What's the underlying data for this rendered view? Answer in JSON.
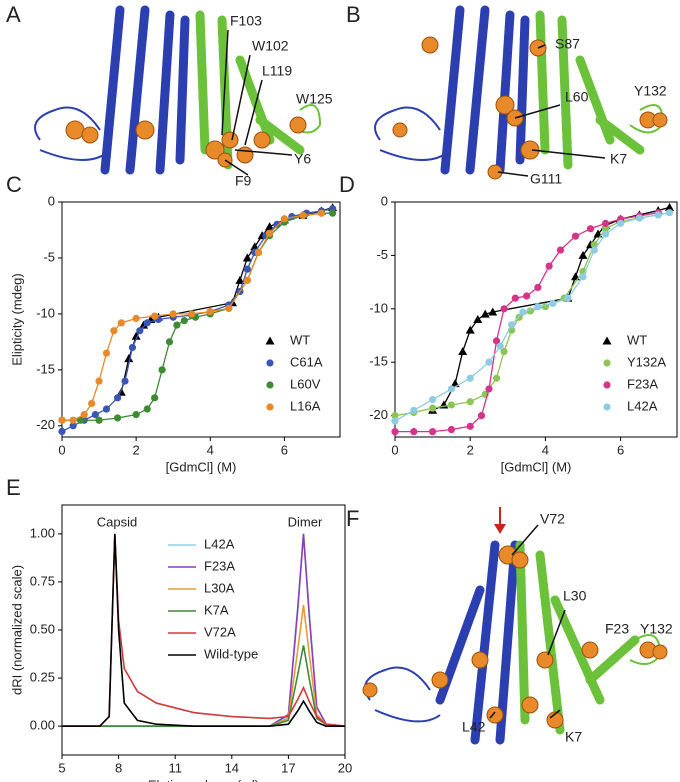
{
  "chart_data": [
    {
      "type": "scatter",
      "panel": "C",
      "xlabel": "[GdmCl] (M)",
      "ylabel": "Elipticity (mdeg)",
      "xlim": [
        0,
        7.5
      ],
      "xticks": [
        0,
        2,
        4,
        6
      ],
      "ylim": [
        -21,
        0
      ],
      "yticks": [
        -20,
        -15,
        -10,
        -5,
        0
      ],
      "legend": "lower right",
      "series": [
        {
          "name": "WT",
          "color": "#000000",
          "marker": "triangle",
          "x": [
            1.6,
            1.8,
            2.0,
            2.2,
            2.4,
            2.6,
            4.6,
            4.8,
            5.0,
            5.2,
            5.4,
            5.6,
            6.0,
            6.5,
            7.0,
            7.3
          ],
          "values": [
            -17,
            -14,
            -12,
            -11,
            -10.5,
            -10.3,
            -9,
            -7,
            -5,
            -4,
            -3,
            -2.2,
            -1.6,
            -1.2,
            -0.8,
            -0.5
          ]
        },
        {
          "name": "C61A",
          "color": "#3a56b5",
          "marker": "circle",
          "x": [
            0,
            0.3,
            0.6,
            0.9,
            1.2,
            1.5,
            1.7,
            1.9,
            2.1,
            2.3,
            2.6,
            3.0,
            3.5,
            4.0,
            4.5,
            4.8,
            5.0,
            5.2,
            5.5,
            5.8,
            6.2,
            6.6,
            7.0,
            7.3
          ],
          "values": [
            -20.5,
            -20,
            -19.5,
            -19,
            -18.5,
            -17.5,
            -16,
            -13,
            -11.5,
            -10.8,
            -10.5,
            -10.3,
            -10.1,
            -9.8,
            -9.2,
            -8,
            -6,
            -4.5,
            -3,
            -2,
            -1.3,
            -1,
            -0.8,
            -0.6
          ]
        },
        {
          "name": "L60V",
          "color": "#3f8a35",
          "marker": "circle",
          "x": [
            0,
            0.5,
            1.0,
            1.5,
            2.0,
            2.3,
            2.5,
            2.7,
            2.9,
            3.1,
            3.3,
            3.6,
            4.0,
            4.5,
            5.0,
            5.3,
            5.6,
            6.0,
            6.5,
            7.0,
            7.3
          ],
          "values": [
            -19.5,
            -19.5,
            -19.5,
            -19.3,
            -19,
            -18.5,
            -17.5,
            -15,
            -12.5,
            -11,
            -10.6,
            -10.3,
            -10,
            -9.5,
            -7,
            -4.5,
            -3,
            -1.8,
            -1.2,
            -1,
            -1
          ]
        },
        {
          "name": "L16A",
          "color": "#e8892a",
          "marker": "circle",
          "x": [
            0,
            0.3,
            0.6,
            0.8,
            1.0,
            1.2,
            1.4,
            1.6,
            2.0,
            2.5,
            3.0,
            3.5,
            4.0,
            4.5,
            5.0,
            5.3,
            5.6,
            6.0,
            6.5,
            7.0
          ],
          "values": [
            -19.5,
            -19.5,
            -19,
            -18,
            -16,
            -13.5,
            -11.5,
            -10.8,
            -10.4,
            -10.2,
            -10,
            -10,
            -9.8,
            -9.5,
            -7,
            -4.5,
            -2.8,
            -1.5,
            -1.2,
            -1
          ]
        }
      ]
    },
    {
      "type": "scatter",
      "panel": "D",
      "xlabel": "[GdmCl] (M)",
      "xlim": [
        0,
        7.5
      ],
      "xticks": [
        0,
        2,
        4,
        6
      ],
      "ylim": [
        -22,
        0
      ],
      "yticks": [
        -20,
        -15,
        -10,
        -5,
        0
      ],
      "legend": "lower right",
      "series": [
        {
          "name": "WT",
          "color": "#000000",
          "marker": "triangle",
          "x": [
            1.0,
            1.3,
            1.6,
            1.8,
            2.0,
            2.2,
            2.4,
            2.6,
            4.6,
            4.8,
            5.0,
            5.2,
            5.4,
            5.6,
            6.0,
            6.5,
            7.0,
            7.3
          ],
          "values": [
            -19.5,
            -19,
            -17,
            -14,
            -12,
            -11,
            -10.5,
            -10.3,
            -9,
            -7,
            -5,
            -4,
            -3,
            -2.2,
            -1.6,
            -1.2,
            -0.8,
            -0.5
          ]
        },
        {
          "name": "Y132A",
          "color": "#8cc456",
          "marker": "circle",
          "x": [
            0,
            0.5,
            1,
            1.5,
            2,
            2.4,
            2.7,
            2.9,
            3.1,
            3.3,
            3.6,
            4,
            4.5,
            5,
            5.3,
            5.6,
            6,
            6.5,
            7
          ],
          "values": [
            -20,
            -19.7,
            -19.3,
            -19,
            -18.7,
            -18,
            -16.5,
            -14,
            -12,
            -10.8,
            -10.2,
            -9.8,
            -9,
            -6.5,
            -4,
            -2.5,
            -1.8,
            -1.5,
            -1.2
          ]
        },
        {
          "name": "F23A",
          "color": "#d6338a",
          "marker": "circle",
          "x": [
            0,
            0.5,
            1,
            1.5,
            2,
            2.3,
            2.5,
            2.7,
            2.9,
            3.2,
            3.5,
            3.8,
            4.1,
            4.4,
            4.8,
            5.2,
            5.6,
            6,
            6.5,
            7
          ],
          "values": [
            -21.5,
            -21.5,
            -21.5,
            -21.3,
            -21,
            -20,
            -17.5,
            -13,
            -10,
            -9,
            -8.8,
            -8,
            -6,
            -4.5,
            -3.2,
            -2.5,
            -2,
            -1.6,
            -1.3,
            -1
          ]
        },
        {
          "name": "L42A",
          "color": "#8fcbe3",
          "marker": "circle",
          "x": [
            0,
            0.5,
            1,
            1.5,
            2,
            2.5,
            2.8,
            3.1,
            3.4,
            3.8,
            4.2,
            4.6,
            5,
            5.3,
            5.6,
            6,
            6.5,
            7,
            7.3
          ],
          "values": [
            -20.5,
            -19.5,
            -18.5,
            -17.5,
            -16.5,
            -15,
            -13.5,
            -11.5,
            -10.3,
            -9.8,
            -9.5,
            -9,
            -7,
            -4.5,
            -3,
            -2,
            -1.5,
            -1.2,
            -1
          ]
        }
      ]
    },
    {
      "type": "line",
      "panel": "E",
      "xlabel": "Elution volume (ml)",
      "ylabel": "dRI (normalized scale)",
      "xlim": [
        5,
        20
      ],
      "xticks": [
        5,
        8,
        11,
        14,
        17,
        20
      ],
      "ylim": [
        -0.15,
        1.15
      ],
      "yticks": [
        {
          "value": 0,
          "label": "0.00"
        },
        {
          "value": 0.25,
          "label": "0.25"
        },
        {
          "value": 0.5,
          "label": "0.50"
        },
        {
          "value": 0.75,
          "label": "0.75"
        },
        {
          "value": 1,
          "label": "1.00"
        }
      ],
      "legend": "upper center",
      "annotations": [
        "Capsid",
        "Dimer"
      ],
      "x": [
        5,
        7,
        7.5,
        7.8,
        8.0,
        8.3,
        9,
        10,
        12,
        14,
        16,
        17,
        17.5,
        17.8,
        18.1,
        18.5,
        19,
        20
      ],
      "series": [
        {
          "name": "L42A",
          "color": "#8fd3e3",
          "values": [
            0,
            0,
            0,
            0,
            0,
            0,
            0,
            0,
            0,
            0,
            0,
            0.05,
            0.6,
            1.0,
            0.6,
            0.1,
            0.01,
            0
          ]
        },
        {
          "name": "F23A",
          "color": "#8a3fb8",
          "values": [
            0,
            0,
            0,
            0,
            0,
            0,
            0,
            0,
            0,
            0,
            0,
            0.06,
            0.62,
            1.0,
            0.58,
            0.1,
            0.01,
            0
          ]
        },
        {
          "name": "L30A",
          "color": "#e89a3a",
          "values": [
            0,
            0,
            0,
            0,
            0,
            0,
            0,
            0,
            0,
            0,
            0,
            0.04,
            0.4,
            0.63,
            0.38,
            0.06,
            0.01,
            0
          ]
        },
        {
          "name": "K7A",
          "color": "#3f8a35",
          "values": [
            0,
            0,
            0,
            0,
            0,
            0,
            0,
            0,
            0,
            0,
            0,
            0.03,
            0.27,
            0.42,
            0.25,
            0.04,
            0.01,
            0
          ]
        },
        {
          "name": "V72A",
          "color": "#d03a3a",
          "values": [
            0,
            0,
            0.05,
            1.0,
            0.55,
            0.3,
            0.18,
            0.12,
            0.07,
            0.05,
            0.04,
            0.05,
            0.14,
            0.2,
            0.13,
            0.05,
            0.01,
            0
          ]
        },
        {
          "name": "Wild-type",
          "color": "#000000",
          "values": [
            0,
            0,
            0.05,
            1.0,
            0.5,
            0.12,
            0.03,
            0.01,
            0,
            0,
            0,
            0.01,
            0.08,
            0.13,
            0.08,
            0.02,
            0,
            0
          ]
        }
      ]
    }
  ],
  "structures": [
    {
      "panel": "A",
      "labels": [
        "F103",
        "W102",
        "L119",
        "W125",
        "Y6",
        "F9"
      ]
    },
    {
      "panel": "B",
      "labels": [
        "S87",
        "L60",
        "Y132",
        "K7",
        "G111"
      ]
    },
    {
      "panel": "F",
      "labels": [
        "V72",
        "L30",
        "F23",
        "Y132",
        "L42",
        "K7"
      ]
    }
  ]
}
